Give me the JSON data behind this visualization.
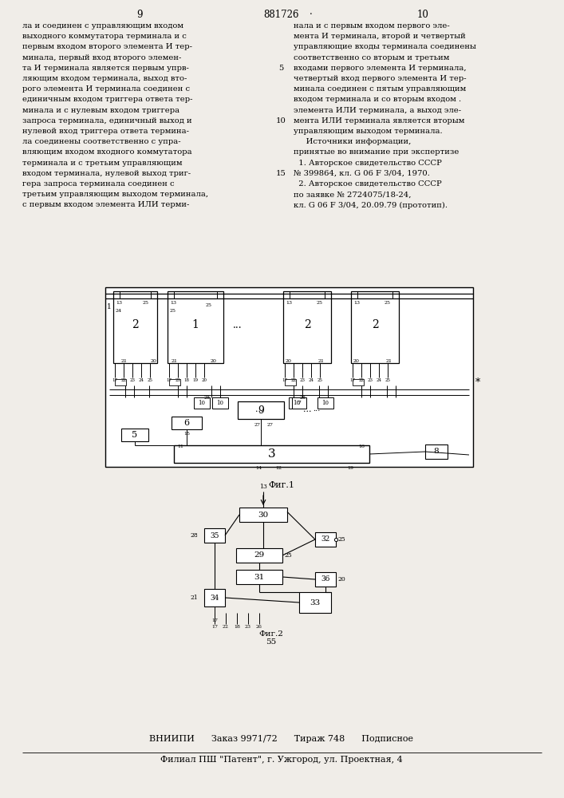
{
  "bg_color": "#f0ede8",
  "header": {
    "left_num": "9",
    "center_num": "881726",
    "right_num": "10"
  },
  "left_text": [
    "ла и соединен с управляющим входом",
    "выходного коммутатора терминала и с",
    "первым входом второго элемента И тер-",
    "минала, первый вход второго элемен-",
    "та И терминала является первым упрв-",
    "ляющим входом терминала, выход вто-",
    "рого элемента И терминала соединен с",
    "единичным входом триггера ответа тер-",
    "минала и с нулевым входом триггера",
    "запроса терминала, единичный выход и",
    "нулевой вход триггера ответа термина-",
    "ла соединены соответственно с упра-",
    "вляющим входом входного коммутатора",
    "терминала и с третьим управляющим",
    "входом терминала, нулевой выход триг-",
    "гера запроса терминала соединен с",
    "третьим управляющим выходом терминала,",
    "с первым входом элемента ИЛИ терми-"
  ],
  "right_text": [
    "нала и с первым входом первого эле-",
    "мента И терминала, второй и четвертый",
    "управляющие входы терминала соединены",
    "соответственно со вторым и третьим",
    "входами первого элемента И терминала,",
    "четвертый вход первого элемента И тер-",
    "минала соединен с пятым управляющим",
    "входом терминала и со вторым входом .",
    "элемента ИЛИ терминала, а выход эле-",
    "мента ИЛИ терминала является вторым",
    "управляющим выходом терминала.",
    "     Источники информации,",
    "принятые во внимание при экспертизе",
    "  1. Авторское свидетельство СССР",
    "№ 399864, кл. G 06 F 3/04, 1970.",
    "  2. Авторское свидетельство СССР",
    "по заявке № 2724075/18-24,",
    "кл. G 06 F 3/04, 20.09.79 (прототип)."
  ],
  "fig1_caption": "Фиг.1",
  "fig2_caption": "Фиг.2",
  "fig2_num": "55",
  "footer_line1": "ВНИИПИ      Заказ 9971/72      Тираж 748      Подписное",
  "footer_line2": "Филиал ПШ \"Патент\", г. Ужгород, ул. Проектная, 4"
}
